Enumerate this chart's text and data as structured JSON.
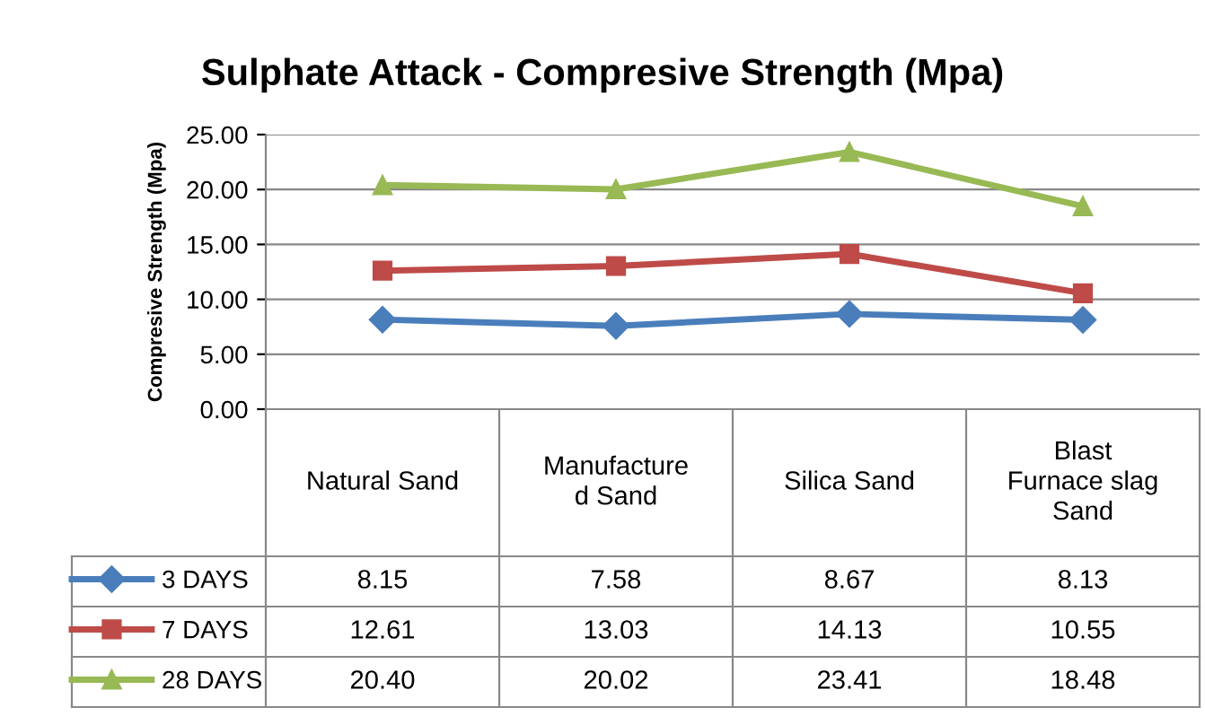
{
  "chart_data": {
    "type": "line",
    "title": "Sulphate Attack - Compresive Strength (Mpa)",
    "ylabel": "Compresive Strength (Mpa)",
    "categories": [
      "Natural Sand",
      "Manufacture\nd Sand",
      "Silica Sand",
      "Blast\nFurnace slag\nSand"
    ],
    "series": [
      {
        "name": "3 DAYS",
        "color": "#4a7ebb",
        "marker": "diamond",
        "values": [
          8.15,
          7.58,
          8.67,
          8.13
        ],
        "value_labels": [
          "8.15",
          "7.58",
          "8.67",
          "8.13"
        ]
      },
      {
        "name": "7 DAYS",
        "color": "#be4b48",
        "marker": "square",
        "values": [
          12.61,
          13.03,
          14.13,
          10.55
        ],
        "value_labels": [
          "12.61",
          "13.03",
          "14.13",
          "10.55"
        ]
      },
      {
        "name": "28 DAYS",
        "color": "#98b954",
        "marker": "triangle",
        "values": [
          20.4,
          20.02,
          23.41,
          18.48
        ],
        "value_labels": [
          "20.40",
          "20.02",
          "23.41",
          "18.48"
        ]
      }
    ],
    "ylim": [
      0,
      25
    ],
    "yticks": [
      {
        "value": 0,
        "label": "0.00"
      },
      {
        "value": 5,
        "label": "5.00"
      },
      {
        "value": 10,
        "label": "10.00"
      },
      {
        "value": 15,
        "label": "15.00"
      },
      {
        "value": 20,
        "label": "20.00"
      },
      {
        "value": 25,
        "label": "25.00"
      }
    ],
    "grid": "y",
    "legend": "bottom"
  }
}
